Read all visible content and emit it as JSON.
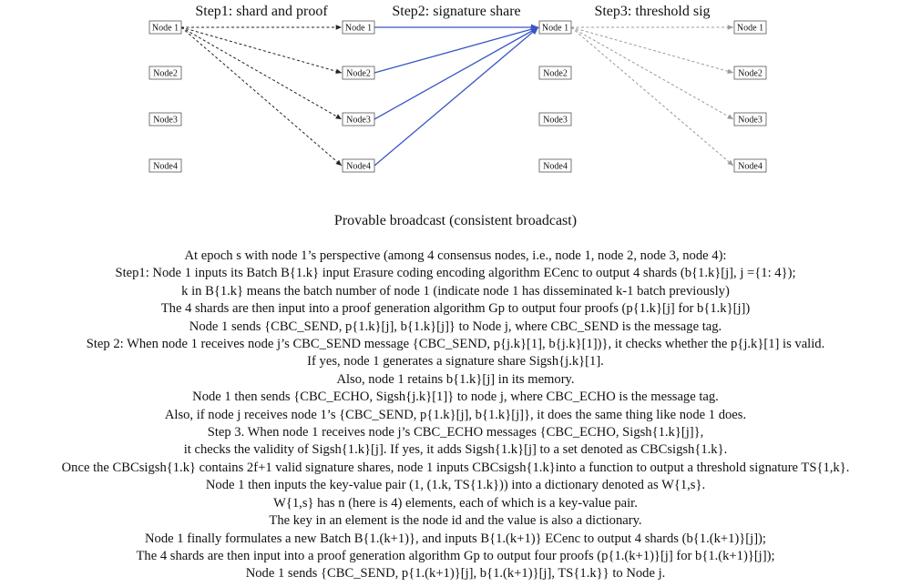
{
  "steps": [
    "Step1: shard and proof",
    "Step2: signature share",
    "Step3: threshold sig"
  ],
  "columns": [
    {
      "nodes": [
        "Node 1",
        "Node2",
        "Node3",
        "Node4"
      ]
    },
    {
      "nodes": [
        "Node 1",
        "Node2",
        "Node3",
        "Node4"
      ]
    },
    {
      "nodes": [
        "Node 1",
        "Node2",
        "Node3",
        "Node4"
      ]
    },
    {
      "nodes": [
        "Node 1",
        "Node2",
        "Node3",
        "Node4"
      ]
    }
  ],
  "edges": [
    {
      "from": [
        0,
        0
      ],
      "to": [
        1,
        0
      ],
      "style": "dashed-black"
    },
    {
      "from": [
        0,
        0
      ],
      "to": [
        1,
        1
      ],
      "style": "dashed-black"
    },
    {
      "from": [
        0,
        0
      ],
      "to": [
        1,
        2
      ],
      "style": "dashed-black"
    },
    {
      "from": [
        0,
        0
      ],
      "to": [
        1,
        3
      ],
      "style": "dashed-black"
    },
    {
      "from": [
        1,
        0
      ],
      "to": [
        2,
        0
      ],
      "style": "solid-blue"
    },
    {
      "from": [
        1,
        1
      ],
      "to": [
        2,
        0
      ],
      "style": "solid-blue"
    },
    {
      "from": [
        1,
        2
      ],
      "to": [
        2,
        0
      ],
      "style": "solid-blue"
    },
    {
      "from": [
        1,
        3
      ],
      "to": [
        2,
        0
      ],
      "style": "solid-blue"
    },
    {
      "from": [
        2,
        0
      ],
      "to": [
        3,
        0
      ],
      "style": "dashed-gray"
    },
    {
      "from": [
        2,
        0
      ],
      "to": [
        3,
        1
      ],
      "style": "dashed-gray"
    },
    {
      "from": [
        2,
        0
      ],
      "to": [
        3,
        2
      ],
      "style": "dashed-gray"
    },
    {
      "from": [
        2,
        0
      ],
      "to": [
        3,
        3
      ],
      "style": "dashed-gray"
    }
  ],
  "colors": {
    "dashed-black": "#222222",
    "solid-blue": "#3a56c5",
    "dashed-gray": "#999999"
  },
  "caption": "Provable broadcast (consistent broadcast)",
  "description": [
    "At epoch s with node 1’s perspective (among 4 consensus nodes, i.e., node 1, node 2, node 3, node 4):",
    "Step1: Node 1 inputs its Batch B{1.k} input Erasure coding encoding algorithm ECenc to output 4 shards (b{1.k}[j], j ={1: 4});",
    "k in B{1.k} means the batch number of node 1 (indicate node 1 has disseminated k-1 batch previously)",
    "The 4 shards are then input into a proof generation algorithm Gp to output four proofs (p{1.k}[j] for b{1.k}[j])",
    "Node 1 sends {CBC_SEND, p{1.k}[j], b{1.k}[j]} to Node j, where CBC_SEND is the message tag.",
    "Step 2: When node 1 receives node j’s CBC_SEND message {CBC_SEND, p{j.k}[1], b{j.k}[1])}, it checks whether the p{j.k}[1] is valid.",
    "If yes, node 1 generates a signature share Sigsh{j.k}[1].",
    "Also, node 1 retains b{1.k}[j] in its memory.",
    "Node 1 then sends {CBC_ECHO, Sigsh{j.k}[1]} to node j, where CBC_ECHO is the message tag.",
    "Also, if node j receives node 1’s {CBC_SEND, p{1.k}[j], b{1.k}[j]}, it does the same thing like node 1 does.",
    "Step 3. When node 1 receives node j’s CBC_ECHO messages {CBC_ECHO, Sigsh{1.k}[j]},",
    "it checks the validity of Sigsh{1.k}[j]. If yes, it adds Sigsh{1.k}[j] to a set denoted as CBCsigsh{1.k}.",
    "Once the CBCsigsh{1.k} contains 2f+1 valid signature shares, node 1 inputs CBCsigsh{1.k}into a function to output a threshold signature TS{1,k}.",
    "Node 1 then inputs the key-value pair (1, (1.k, TS{1.k})) into a dictionary denoted as W{1,s}.",
    "W{1,s} has n (here is 4) elements, each of which is a key-value pair.",
    "The key in an element is the node id and the value is also a dictionary.",
    "Node 1 finally formulates a new Batch B{1.(k+1)}, and inputs B{1.(k+1)} ECenc to output 4 shards (b{1.(k+1)}[j]);",
    "The 4 shards are then input into a proof generation algorithm Gp to output four proofs (p{1.(k+1)}[j] for b{1.(k+1)}[j]);",
    "Node 1 sends {CBC_SEND, p{1.(k+1)}[j], b{1.(k+1)}[j], TS{1.k}} to Node j."
  ]
}
